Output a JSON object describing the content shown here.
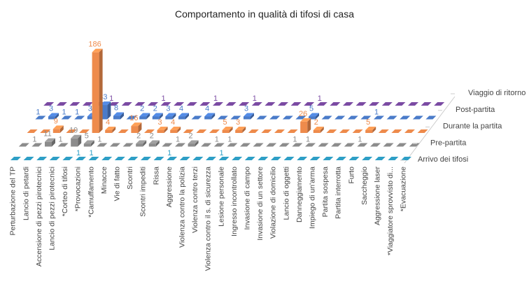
{
  "chart_data": {
    "type": "bar",
    "subtype": "3d-column",
    "title": "Comportamento in qualità di tifosi di casa",
    "categories": [
      "Perturbazione del TP",
      "Lancio di petardi",
      "Accensione di pezzi pirotecnici",
      "Lancio di pezzi pirotecnici",
      "*Corteo di tifosi",
      "*Provocazioni",
      "*Camuffamento",
      "Minacce",
      "Vie di fatto",
      "Scontri",
      "Scontri impediti",
      "Rissa",
      "Aggressione",
      "Violenza contro la polizia",
      "Violenza contro terzi",
      "Violenza contro il s. di sicurezza",
      "Lesione personale",
      "Ingresso incontrollato",
      "Invasione di campo",
      "Invasione di un settore",
      "Violazione di domicilio",
      "Lancio di oggetti",
      "Danneggiamento",
      "Impiego di un'arma",
      "Partita sospesa",
      "Partita interrotta",
      "Furto",
      "Saccheggio",
      "Aggressione laser",
      "*Viaggiatore sprovvisto di...",
      "*Evacuazione"
    ],
    "series": [
      {
        "name": "Arrivo dei tifosi",
        "color": "#2E9FC6",
        "values": [
          0,
          0,
          0,
          0,
          0,
          1,
          1,
          0,
          0,
          0,
          0,
          0,
          1,
          0,
          0,
          0,
          1,
          0,
          0,
          0,
          0,
          0,
          0,
          0,
          0,
          0,
          0,
          0,
          0,
          0,
          0
        ]
      },
      {
        "name": "Pre-partita",
        "color": "#8C8C8C",
        "values": [
          0,
          1,
          11,
          1,
          19,
          5,
          1,
          0,
          0,
          2,
          2,
          0,
          1,
          2,
          0,
          1,
          1,
          0,
          0,
          0,
          0,
          1,
          1,
          0,
          0,
          0,
          1,
          0,
          0,
          0,
          0
        ]
      },
      {
        "name": "Durante la partita",
        "color": "#EE8B4C",
        "values": [
          0,
          0,
          9,
          0,
          0,
          186,
          4,
          0,
          16,
          0,
          3,
          4,
          0,
          0,
          0,
          5,
          3,
          0,
          0,
          0,
          0,
          26,
          2,
          0,
          0,
          0,
          5,
          0,
          0,
          0,
          0
        ]
      },
      {
        "name": "Post-partita",
        "color": "#4A7BC9",
        "values": [
          1,
          3,
          1,
          1,
          3,
          33,
          8,
          0,
          2,
          2,
          3,
          4,
          0,
          4,
          0,
          0,
          3,
          0,
          0,
          0,
          0,
          5,
          0,
          0,
          0,
          0,
          1,
          0,
          0,
          0,
          0
        ]
      },
      {
        "name": "Viaggio di ritorno",
        "color": "#7B4BA3",
        "values": [
          0,
          0,
          0,
          0,
          0,
          1,
          0,
          0,
          0,
          1,
          0,
          0,
          0,
          1,
          0,
          0,
          1,
          0,
          0,
          0,
          0,
          1,
          0,
          0,
          0,
          0,
          0,
          0,
          0,
          0,
          0
        ]
      }
    ],
    "data_labels": true,
    "grid": false,
    "legend": "series labels on depth axis (right)"
  }
}
